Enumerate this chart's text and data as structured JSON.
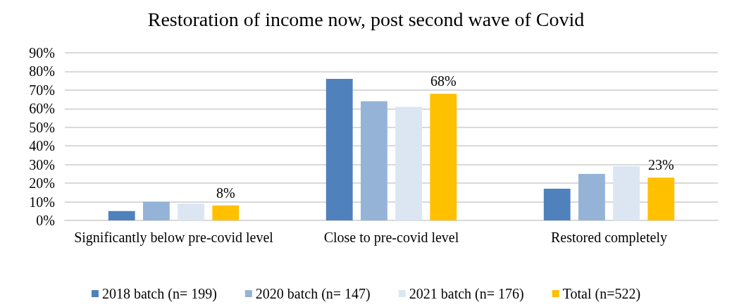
{
  "chart_data": {
    "type": "bar",
    "title": "Restoration of income now, post second wave of Covid",
    "categories": [
      "Significantly below pre-covid level",
      "Close to pre-covid level",
      "Restored completely"
    ],
    "series": [
      {
        "name": "2018 batch (n= 199)",
        "color": "#4f81bd",
        "values": [
          5,
          76,
          17
        ]
      },
      {
        "name": "2020 batch (n= 147)",
        "color": "#95b3d7",
        "values": [
          10,
          64,
          25
        ]
      },
      {
        "name": "2021 batch (n= 176)",
        "color": "#dce6f2",
        "values": [
          9,
          61,
          29
        ]
      },
      {
        "name": "Total (n=522)",
        "color": "#ffc000",
        "values": [
          8,
          68,
          23
        ],
        "value_labels": [
          "8%",
          "68%",
          "23%"
        ]
      }
    ],
    "ylim": [
      0,
      90
    ],
    "yticks": [
      {
        "value": 0,
        "label": "0%"
      },
      {
        "value": 10,
        "label": "10%"
      },
      {
        "value": 20,
        "label": "20%"
      },
      {
        "value": 30,
        "label": "30%"
      },
      {
        "value": 40,
        "label": "40%"
      },
      {
        "value": 50,
        "label": "50%"
      },
      {
        "value": 60,
        "label": "60%"
      },
      {
        "value": 70,
        "label": "70%"
      },
      {
        "value": 80,
        "label": "80%"
      },
      {
        "value": 90,
        "label": "90%"
      }
    ],
    "grid": "y",
    "legend": "bottom"
  }
}
